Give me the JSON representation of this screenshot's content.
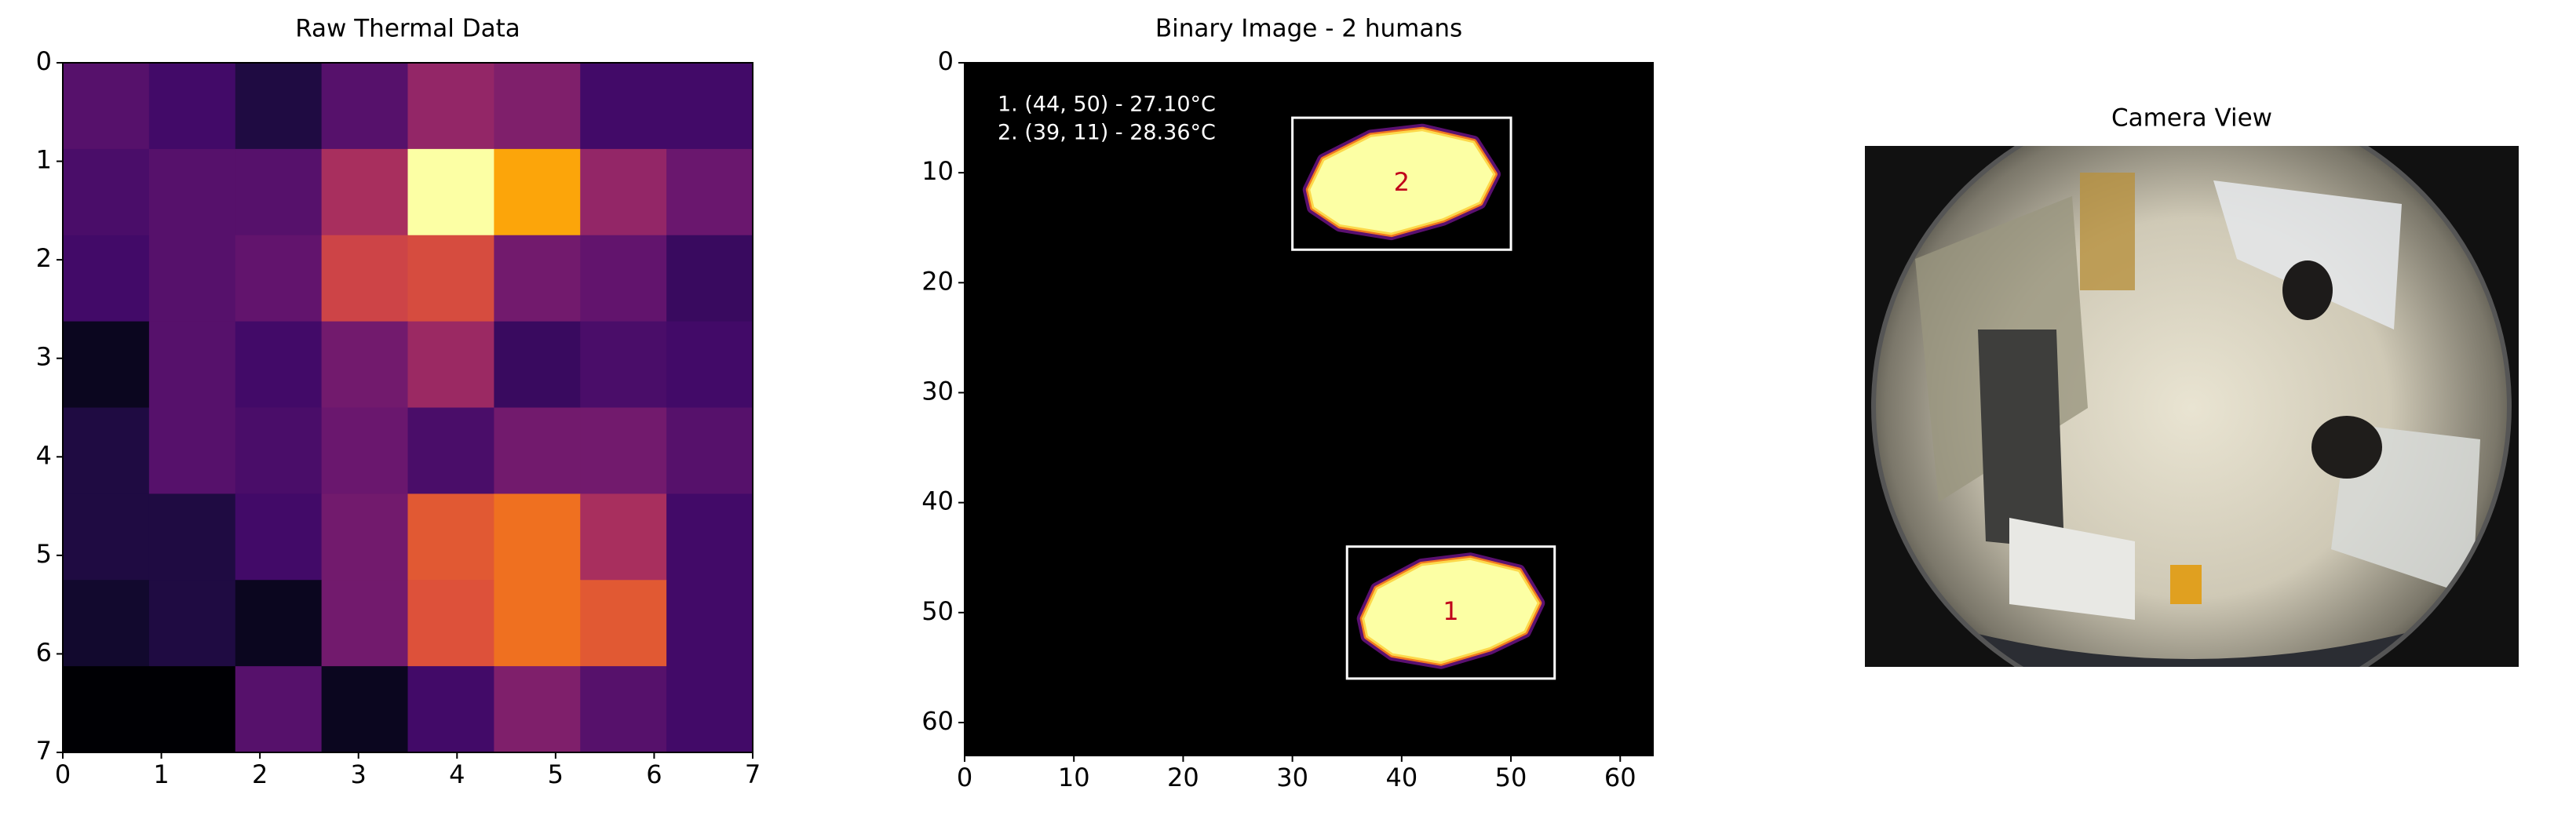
{
  "chart_data": [
    {
      "type": "heatmap",
      "title": "Raw Thermal Data",
      "colormap": "inferno",
      "values": [
        [
          0.25,
          0.2,
          0.12,
          0.25,
          0.4,
          0.35,
          0.2,
          0.2
        ],
        [
          0.22,
          0.25,
          0.25,
          0.45,
          1.0,
          0.8,
          0.4,
          0.3
        ],
        [
          0.2,
          0.25,
          0.28,
          0.55,
          0.58,
          0.32,
          0.28,
          0.18
        ],
        [
          0.05,
          0.25,
          0.2,
          0.32,
          0.42,
          0.18,
          0.22,
          0.2
        ],
        [
          0.12,
          0.25,
          0.22,
          0.3,
          0.22,
          0.32,
          0.32,
          0.25
        ],
        [
          0.12,
          0.12,
          0.2,
          0.32,
          0.62,
          0.68,
          0.45,
          0.2
        ],
        [
          0.08,
          0.12,
          0.05,
          0.32,
          0.6,
          0.68,
          0.62,
          0.2
        ],
        [
          0.0,
          0.0,
          0.25,
          0.05,
          0.2,
          0.35,
          0.25,
          0.2
        ]
      ],
      "xlim": [
        0,
        7
      ],
      "ylim": [
        7,
        0
      ],
      "xticks": [
        0,
        1,
        2,
        3,
        4,
        5,
        6,
        7
      ],
      "yticks": [
        0,
        1,
        2,
        3,
        4,
        5,
        6,
        7
      ]
    },
    {
      "type": "mask",
      "title": "Binary Image - 2 humans",
      "background": "#000000",
      "annotations": [
        "1. (44, 50) - 27.10°C",
        "2. (39, 11) - 28.36°C"
      ],
      "boxes": [
        {
          "label": "1",
          "x": [
            35,
            54
          ],
          "y": [
            44,
            56
          ]
        },
        {
          "label": "2",
          "x": [
            30,
            50
          ],
          "y": [
            5,
            17
          ]
        }
      ],
      "box_color": "#ffffff",
      "label_color": "#c0001a",
      "xlim": [
        0,
        63
      ],
      "ylim": [
        63,
        0
      ],
      "xticks": [
        0,
        10,
        20,
        30,
        40,
        50,
        60
      ],
      "yticks": [
        0,
        10,
        20,
        30,
        40,
        50,
        60
      ]
    },
    {
      "type": "photo",
      "title": "Camera View"
    }
  ]
}
